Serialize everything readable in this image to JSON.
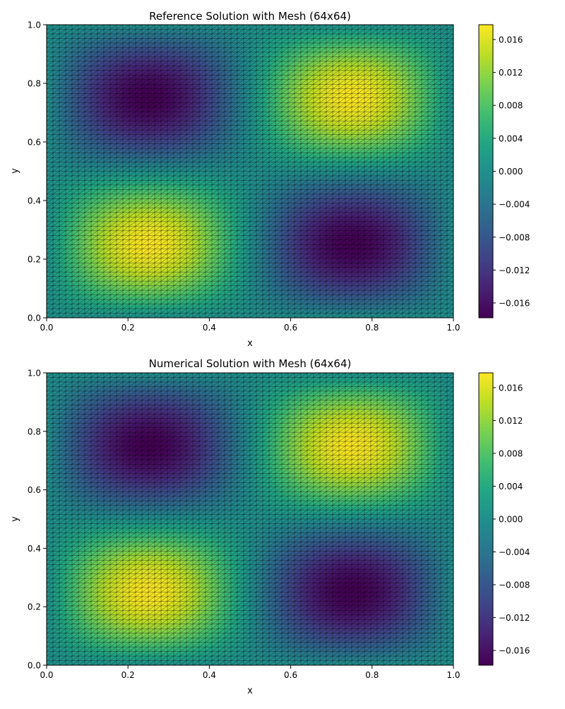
{
  "chart_data": [
    {
      "type": "heatmap",
      "title": "Reference Solution with Mesh (64x64)",
      "xlabel": "x",
      "ylabel": "y",
      "xlim": [
        0,
        1
      ],
      "ylim": [
        0,
        1
      ],
      "xticks": [
        "0.0",
        "0.2",
        "0.4",
        "0.6",
        "0.8",
        "1.0"
      ],
      "yticks": [
        "0.0",
        "0.2",
        "0.4",
        "0.6",
        "0.8",
        "1.0"
      ],
      "mesh": "64x64 triangular mesh",
      "field": "u(x,y) = 0.0178 * sin(2*pi*x) * sin(2*pi*y)",
      "colormap": "viridis",
      "color_range": [
        -0.0178,
        0.0178
      ],
      "colorbar_ticks": [
        "-0.016",
        "-0.012",
        "-0.008",
        "-0.004",
        "0.000",
        "0.004",
        "0.008",
        "0.012",
        "0.016"
      ],
      "grid": false
    },
    {
      "type": "heatmap",
      "title": "Numerical Solution with Mesh (64x64)",
      "xlabel": "x",
      "ylabel": "y",
      "xlim": [
        0,
        1
      ],
      "ylim": [
        0,
        1
      ],
      "xticks": [
        "0.0",
        "0.2",
        "0.4",
        "0.6",
        "0.8",
        "1.0"
      ],
      "yticks": [
        "0.0",
        "0.2",
        "0.4",
        "0.6",
        "0.8",
        "1.0"
      ],
      "mesh": "64x64 triangular mesh",
      "field": "u(x,y) = 0.0178 * sin(2*pi*x) * sin(2*pi*y)",
      "colormap": "viridis",
      "color_range": [
        -0.0178,
        0.0178
      ],
      "colorbar_ticks": [
        "-0.016",
        "-0.012",
        "-0.008",
        "-0.004",
        "0.000",
        "0.004",
        "0.008",
        "0.012",
        "0.016"
      ],
      "grid": false
    }
  ]
}
